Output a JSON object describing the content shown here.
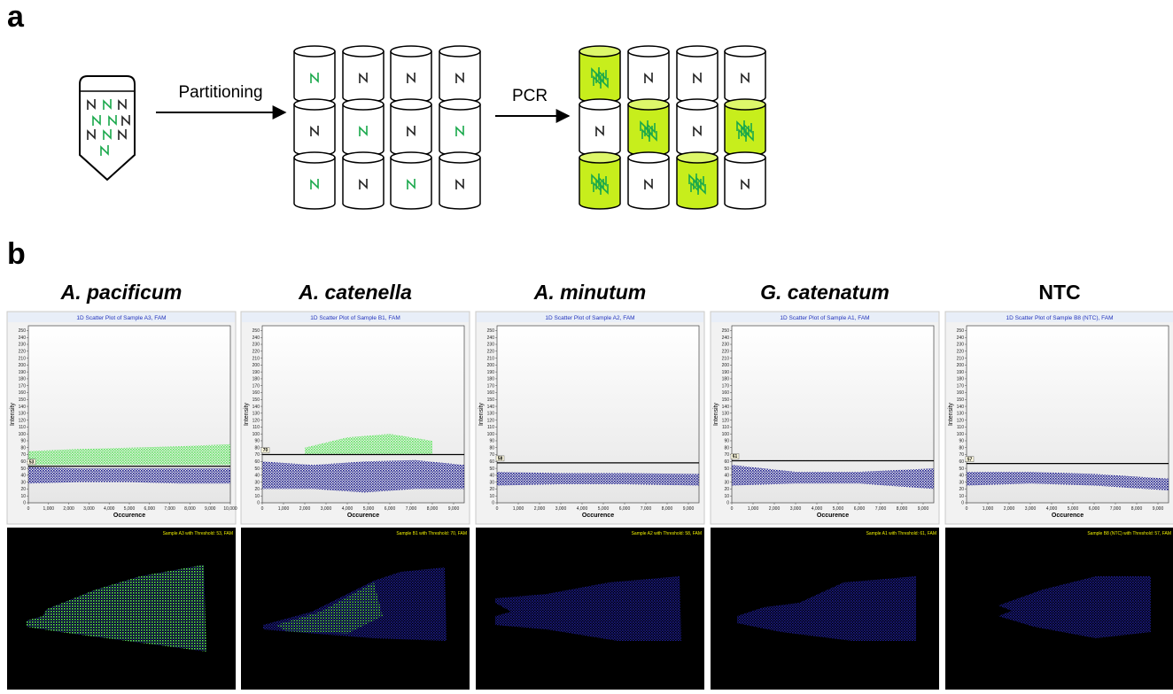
{
  "panel_labels": [
    "a",
    "b"
  ],
  "diagram": {
    "steps": [
      "Partitioning",
      "PCR"
    ]
  },
  "chart_data": [
    {
      "type": "scatter",
      "heading": "A. pacificum",
      "heading_italic": true,
      "title": "1D Scatter Plot of Sample A3, FAM",
      "xlabel": "Occurence",
      "ylabel": "Intensity",
      "xlim": [
        0,
        10000
      ],
      "xticks": [
        0,
        {
          "value": 1000,
          "label": "1,000"
        },
        {
          "value": 2000,
          "label": "2,000"
        },
        {
          "value": 3000,
          "label": "3,000"
        },
        {
          "value": 4000,
          "label": "4,000"
        },
        {
          "value": 5000,
          "label": "5,000"
        },
        {
          "value": 6000,
          "label": "6,000"
        },
        {
          "value": 7000,
          "label": "7,000"
        },
        {
          "value": 8000,
          "label": "8,000"
        },
        {
          "value": 9000,
          "label": "9,000"
        },
        {
          "value": 10000,
          "label": "10,000"
        }
      ],
      "ylim": [
        0,
        257
      ],
      "yticks": [
        0,
        10,
        20,
        30,
        40,
        50,
        60,
        70,
        80,
        90,
        100,
        110,
        120,
        130,
        140,
        150,
        160,
        170,
        180,
        190,
        200,
        210,
        220,
        230,
        240,
        250
      ],
      "threshold": 53,
      "bands": [
        {
          "color": "#1c1c8f",
          "x": [
            0,
            2500,
            5000,
            7500,
            10000
          ],
          "low": [
            28,
            30,
            30,
            28,
            28
          ],
          "high": [
            52,
            50,
            50,
            50,
            50
          ]
        },
        {
          "color": "#5ee65e",
          "x": [
            0,
            2500,
            5000,
            7500,
            10000
          ],
          "low": [
            55,
            55,
            55,
            55,
            55
          ],
          "high": [
            75,
            78,
            80,
            82,
            85
          ]
        }
      ],
      "image_caption": "Sample A3 with Threshold:   53, FAM"
    },
    {
      "type": "scatter",
      "heading": "A. catenella",
      "heading_italic": true,
      "title": "1D Scatter Plot of Sample B1, FAM",
      "xlabel": "Occurence",
      "ylabel": "Intensity",
      "xlim": [
        0,
        9500
      ],
      "xticks": [
        0,
        {
          "value": 1000,
          "label": "1,000"
        },
        {
          "value": 2000,
          "label": "2,000"
        },
        {
          "value": 3000,
          "label": "3,000"
        },
        {
          "value": 4000,
          "label": "4,000"
        },
        {
          "value": 5000,
          "label": "5,000"
        },
        {
          "value": 6000,
          "label": "6,000"
        },
        {
          "value": 7000,
          "label": "7,000"
        },
        {
          "value": 8000,
          "label": "8,000"
        },
        {
          "value": 9000,
          "label": "9,000"
        }
      ],
      "ylim": [
        0,
        257
      ],
      "yticks": [
        0,
        10,
        20,
        30,
        40,
        50,
        60,
        70,
        80,
        90,
        100,
        110,
        120,
        130,
        140,
        150,
        160,
        170,
        180,
        190,
        200,
        210,
        220,
        230,
        240,
        250
      ],
      "threshold": 70,
      "bands": [
        {
          "color": "#1c1c8f",
          "x": [
            0,
            2400,
            4800,
            7200,
            9500
          ],
          "low": [
            20,
            20,
            15,
            20,
            20
          ],
          "high": [
            60,
            55,
            60,
            62,
            55
          ]
        },
        {
          "color": "#5ee65e",
          "x": [
            2000,
            4000,
            6000,
            8000
          ],
          "low": [
            70,
            70,
            70,
            70
          ],
          "high": [
            80,
            95,
            100,
            90
          ]
        }
      ],
      "image_caption": "Sample B1 with Threshold:   70, FAM"
    },
    {
      "type": "scatter",
      "heading": "A. minutum",
      "heading_italic": true,
      "title": "1D Scatter Plot of Sample A2, FAM",
      "xlabel": "Occurence",
      "ylabel": "Intensity",
      "xlim": [
        0,
        9500
      ],
      "xticks": [
        0,
        {
          "value": 1000,
          "label": "1,000"
        },
        {
          "value": 2000,
          "label": "2,000"
        },
        {
          "value": 3000,
          "label": "3,000"
        },
        {
          "value": 4000,
          "label": "4,000"
        },
        {
          "value": 5000,
          "label": "5,000"
        },
        {
          "value": 6000,
          "label": "6,000"
        },
        {
          "value": 7000,
          "label": "7,000"
        },
        {
          "value": 8000,
          "label": "8,000"
        },
        {
          "value": 9000,
          "label": "9,000"
        }
      ],
      "ylim": [
        0,
        257
      ],
      "yticks": [
        0,
        10,
        20,
        30,
        40,
        50,
        60,
        70,
        80,
        90,
        100,
        110,
        120,
        130,
        140,
        150,
        160,
        170,
        180,
        190,
        200,
        210,
        220,
        230,
        240,
        250
      ],
      "threshold": 58,
      "bands": [
        {
          "color": "#1c1c8f",
          "x": [
            0,
            3000,
            6000,
            9500
          ],
          "low": [
            25,
            27,
            27,
            25
          ],
          "high": [
            45,
            43,
            43,
            42
          ]
        }
      ],
      "image_caption": "Sample A2 with Threshold:   58, FAM"
    },
    {
      "type": "scatter",
      "heading": "G. catenatum",
      "heading_italic": true,
      "title": "1D Scatter Plot of Sample A1, FAM",
      "xlabel": "Occurence",
      "ylabel": "Intensity",
      "xlim": [
        0,
        9500
      ],
      "xticks": [
        0,
        {
          "value": 1000,
          "label": "1,000"
        },
        {
          "value": 2000,
          "label": "2,000"
        },
        {
          "value": 3000,
          "label": "3,000"
        },
        {
          "value": 4000,
          "label": "4,000"
        },
        {
          "value": 5000,
          "label": "5,000"
        },
        {
          "value": 6000,
          "label": "6,000"
        },
        {
          "value": 7000,
          "label": "7,000"
        },
        {
          "value": 8000,
          "label": "8,000"
        },
        {
          "value": 9000,
          "label": "9,000"
        }
      ],
      "ylim": [
        0,
        257
      ],
      "yticks": [
        0,
        10,
        20,
        30,
        40,
        50,
        60,
        70,
        80,
        90,
        100,
        110,
        120,
        130,
        140,
        150,
        160,
        170,
        180,
        190,
        200,
        210,
        220,
        230,
        240,
        250
      ],
      "threshold": 61,
      "bands": [
        {
          "color": "#1c1c8f",
          "x": [
            0,
            3000,
            6000,
            9500
          ],
          "low": [
            25,
            28,
            28,
            20
          ],
          "high": [
            55,
            45,
            45,
            50
          ]
        }
      ],
      "image_caption": "Sample A1 with Threshold:   61, FAM"
    },
    {
      "type": "scatter",
      "heading": "NTC",
      "heading_italic": false,
      "title": "1D Scatter Plot of Sample B8 (NTC), FAM",
      "xlabel": "Occurence",
      "ylabel": "Intensity",
      "xlim": [
        0,
        9500
      ],
      "xticks": [
        0,
        {
          "value": 1000,
          "label": "1,000"
        },
        {
          "value": 2000,
          "label": "2,000"
        },
        {
          "value": 3000,
          "label": "3,000"
        },
        {
          "value": 4000,
          "label": "4,000"
        },
        {
          "value": 5000,
          "label": "5,000"
        },
        {
          "value": 6000,
          "label": "6,000"
        },
        {
          "value": 7000,
          "label": "7,000"
        },
        {
          "value": 8000,
          "label": "8,000"
        },
        {
          "value": 9000,
          "label": "9,000"
        }
      ],
      "ylim": [
        0,
        257
      ],
      "yticks": [
        0,
        10,
        20,
        30,
        40,
        50,
        60,
        70,
        80,
        90,
        100,
        110,
        120,
        130,
        140,
        150,
        160,
        170,
        180,
        190,
        200,
        210,
        220,
        230,
        240,
        250
      ],
      "threshold": 57,
      "bands": [
        {
          "color": "#1c1c8f",
          "x": [
            0,
            3000,
            6000,
            9500
          ],
          "low": [
            25,
            28,
            25,
            18
          ],
          "high": [
            45,
            45,
            42,
            35
          ]
        }
      ],
      "image_caption": "Sample B8 (NTC) with Threshold:   57, FAM"
    }
  ]
}
